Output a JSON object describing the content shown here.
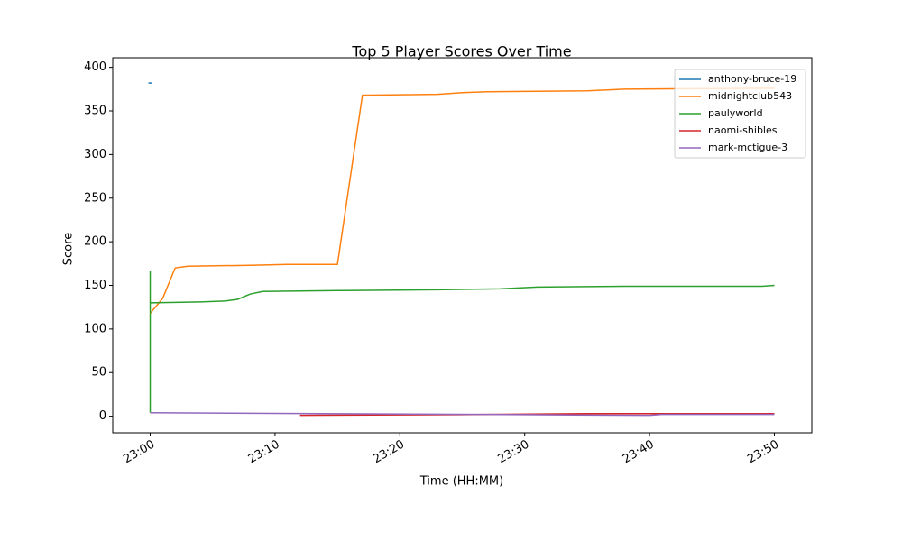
{
  "chart_data": {
    "type": "line",
    "title": "Top 5 Player Scores Over Time",
    "xlabel": "Time (HH:MM)",
    "ylabel": "Score",
    "xlim": [
      "22:57",
      "23:53"
    ],
    "xticks": [
      "23:00",
      "23:10",
      "23:20",
      "23:30",
      "23:40",
      "23:50"
    ],
    "ylim": [
      -19,
      411
    ],
    "yticks": [
      0,
      50,
      100,
      150,
      200,
      250,
      300,
      350,
      400
    ],
    "legend": "upper right",
    "series": [
      {
        "name": "anthony-bruce-19",
        "color": "#1f77b4",
        "x": [
          "23:00"
        ],
        "values": [
          382
        ]
      },
      {
        "name": "midnightclub543",
        "color": "#ff7f0e",
        "x": [
          "23:00",
          "23:01",
          "23:02",
          "23:03",
          "23:08",
          "23:11",
          "23:15",
          "23:17",
          "23:23",
          "23:25",
          "23:27",
          "23:35",
          "23:38",
          "23:50"
        ],
        "values": [
          118,
          135,
          170,
          172,
          173,
          174,
          174,
          368,
          369,
          371,
          372,
          373,
          375,
          376
        ]
      },
      {
        "name": "paulyworld",
        "color": "#2ca02c",
        "x": [
          "23:00",
          "23:00",
          "23:00",
          "23:04",
          "23:06",
          "23:07",
          "23:08",
          "23:09",
          "23:15",
          "23:23",
          "23:28",
          "23:31",
          "23:38",
          "23:49",
          "23:50"
        ],
        "values": [
          166,
          4,
          130,
          131,
          132,
          134,
          140,
          143,
          144,
          145,
          146,
          148,
          149,
          149,
          150
        ]
      },
      {
        "name": "naomi-shibles",
        "color": "#d62728",
        "x": [
          "23:12",
          "23:27",
          "23:35",
          "23:50"
        ],
        "values": [
          1,
          2,
          3,
          3
        ]
      },
      {
        "name": "mark-mctigue-3",
        "color": "#9467bd",
        "x": [
          "23:00",
          "23:27",
          "23:40",
          "23:41",
          "23:50"
        ],
        "values": [
          4,
          2,
          1,
          2,
          2
        ]
      }
    ]
  }
}
